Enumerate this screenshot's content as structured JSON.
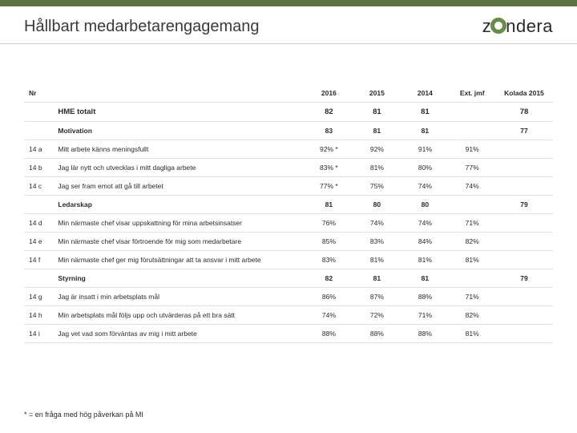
{
  "colors": {
    "topbar": "#5a7340",
    "logo_ring": "#6a8a4a",
    "divider": "#d0d0c8",
    "row_border": "#e2e2dc",
    "text": "#2a2a2a",
    "title_text": "#3a3a3a",
    "bg": "#ffffff"
  },
  "fonts": {
    "title_size_pt": 15,
    "body_size_pt": 6.5,
    "section_size_pt": 7
  },
  "title": "Hållbart medarbetarengagemang",
  "logo": {
    "pre": "z",
    "post": "ndera"
  },
  "table": {
    "columns": [
      {
        "key": "nr",
        "label": "Nr",
        "align": "left"
      },
      {
        "key": "desc",
        "label": "",
        "align": "left"
      },
      {
        "key": "y2016",
        "label": "2016",
        "align": "center"
      },
      {
        "key": "y2015",
        "label": "2015",
        "align": "center"
      },
      {
        "key": "y2014",
        "label": "2014",
        "align": "center"
      },
      {
        "key": "ext",
        "label": "Ext. jmf",
        "align": "center"
      },
      {
        "key": "kolada",
        "label": "Kolada 2015",
        "align": "center"
      }
    ],
    "rows": [
      {
        "type": "section",
        "nr": "",
        "desc": "HME totalt",
        "y2016": "82",
        "y2015": "81",
        "y2014": "81",
        "ext": "",
        "kolada": "78"
      },
      {
        "type": "subhead",
        "nr": "",
        "desc": "Motivation",
        "y2016": "83",
        "y2015": "81",
        "y2014": "81",
        "ext": "",
        "kolada": "77"
      },
      {
        "type": "data",
        "nr": "14 a",
        "desc": "Mitt arbete känns meningsfullt",
        "y2016": "92% *",
        "y2015": "92%",
        "y2014": "91%",
        "ext": "91%",
        "kolada": ""
      },
      {
        "type": "data",
        "nr": "14 b",
        "desc": "Jag lär nytt och utvecklas i mitt dagliga arbete",
        "y2016": "83% *",
        "y2015": "81%",
        "y2014": "80%",
        "ext": "77%",
        "kolada": ""
      },
      {
        "type": "data",
        "nr": "14 c",
        "desc": "Jag ser fram emot att gå till arbetet",
        "y2016": "77% *",
        "y2015": "75%",
        "y2014": "74%",
        "ext": "74%",
        "kolada": ""
      },
      {
        "type": "subhead",
        "nr": "",
        "desc": "Ledarskap",
        "y2016": "81",
        "y2015": "80",
        "y2014": "80",
        "ext": "",
        "kolada": "79"
      },
      {
        "type": "data",
        "nr": "14 d",
        "desc": "Min närmaste chef visar uppskattning för mina arbetsinsatser",
        "y2016": "76%",
        "y2015": "74%",
        "y2014": "74%",
        "ext": "71%",
        "kolada": ""
      },
      {
        "type": "data",
        "nr": "14 e",
        "desc": "Min närmaste chef visar förtroende för mig som medarbetare",
        "y2016": "85%",
        "y2015": "83%",
        "y2014": "84%",
        "ext": "82%",
        "kolada": ""
      },
      {
        "type": "data",
        "nr": "14 f",
        "desc": "Min närmaste chef ger mig förutsättningar att ta ansvar i mitt arbete",
        "y2016": "83%",
        "y2015": "81%",
        "y2014": "81%",
        "ext": "81%",
        "kolada": ""
      },
      {
        "type": "subhead",
        "nr": "",
        "desc": "Styrning",
        "y2016": "82",
        "y2015": "81",
        "y2014": "81",
        "ext": "",
        "kolada": "79"
      },
      {
        "type": "data",
        "nr": "14 g",
        "desc": "Jag är insatt i min arbetsplats mål",
        "y2016": "86%",
        "y2015": "87%",
        "y2014": "88%",
        "ext": "71%",
        "kolada": ""
      },
      {
        "type": "data",
        "nr": "14 h",
        "desc": "Min arbetsplats mål följs upp och utvärderas på ett bra sätt",
        "y2016": "74%",
        "y2015": "72%",
        "y2014": "71%",
        "ext": "82%",
        "kolada": ""
      },
      {
        "type": "data",
        "nr": "14 i",
        "desc": "Jag vet vad som förväntas av mig i mitt arbete",
        "y2016": "88%",
        "y2015": "88%",
        "y2014": "88%",
        "ext": "81%",
        "kolada": ""
      }
    ]
  },
  "footnote": "* = en fråga med hög påverkan på MI"
}
